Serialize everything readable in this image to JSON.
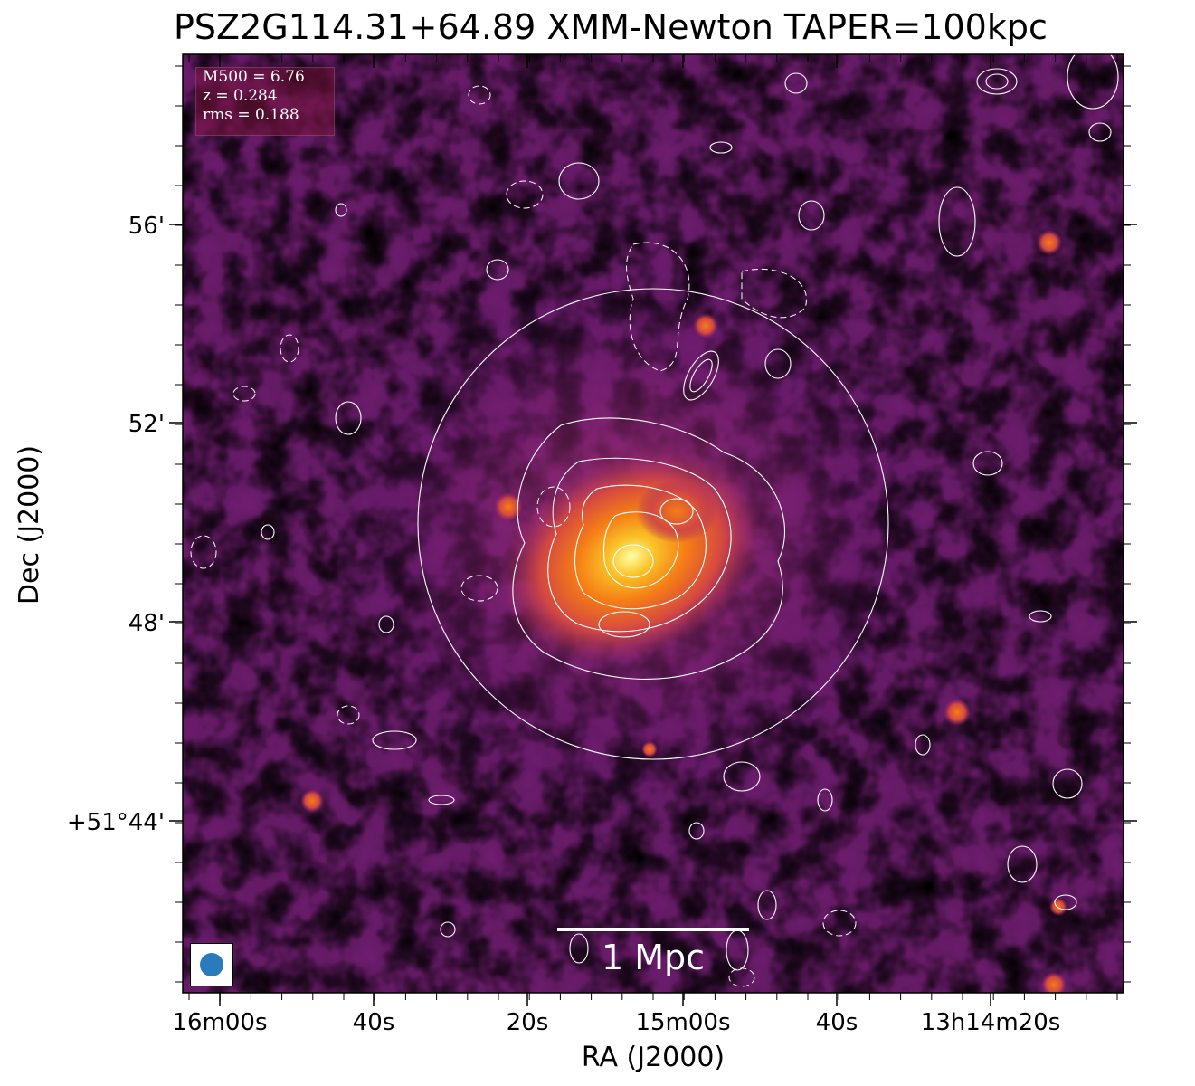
{
  "title": "PSZ2G114.31+64.89 XMM-Newton TAPER=100kpc",
  "info": {
    "m500": "M500 = 6.76",
    "z": "z = 0.284",
    "rms": "rms = 0.188"
  },
  "axes": {
    "xlabel": "RA (J2000)",
    "ylabel": "Dec (J2000)",
    "x_ticks": [
      "16m00s",
      "40s",
      "20s",
      "15m00s",
      "40s",
      "13h14m20s"
    ],
    "y_ticks": [
      "56'",
      "52'",
      "48'",
      "+51°44'"
    ]
  },
  "scalebar": {
    "label": "1 Mpc"
  },
  "colors": {
    "colormap": "inferno",
    "contours": "#ffffff",
    "beam": "#2a7bbd"
  }
}
